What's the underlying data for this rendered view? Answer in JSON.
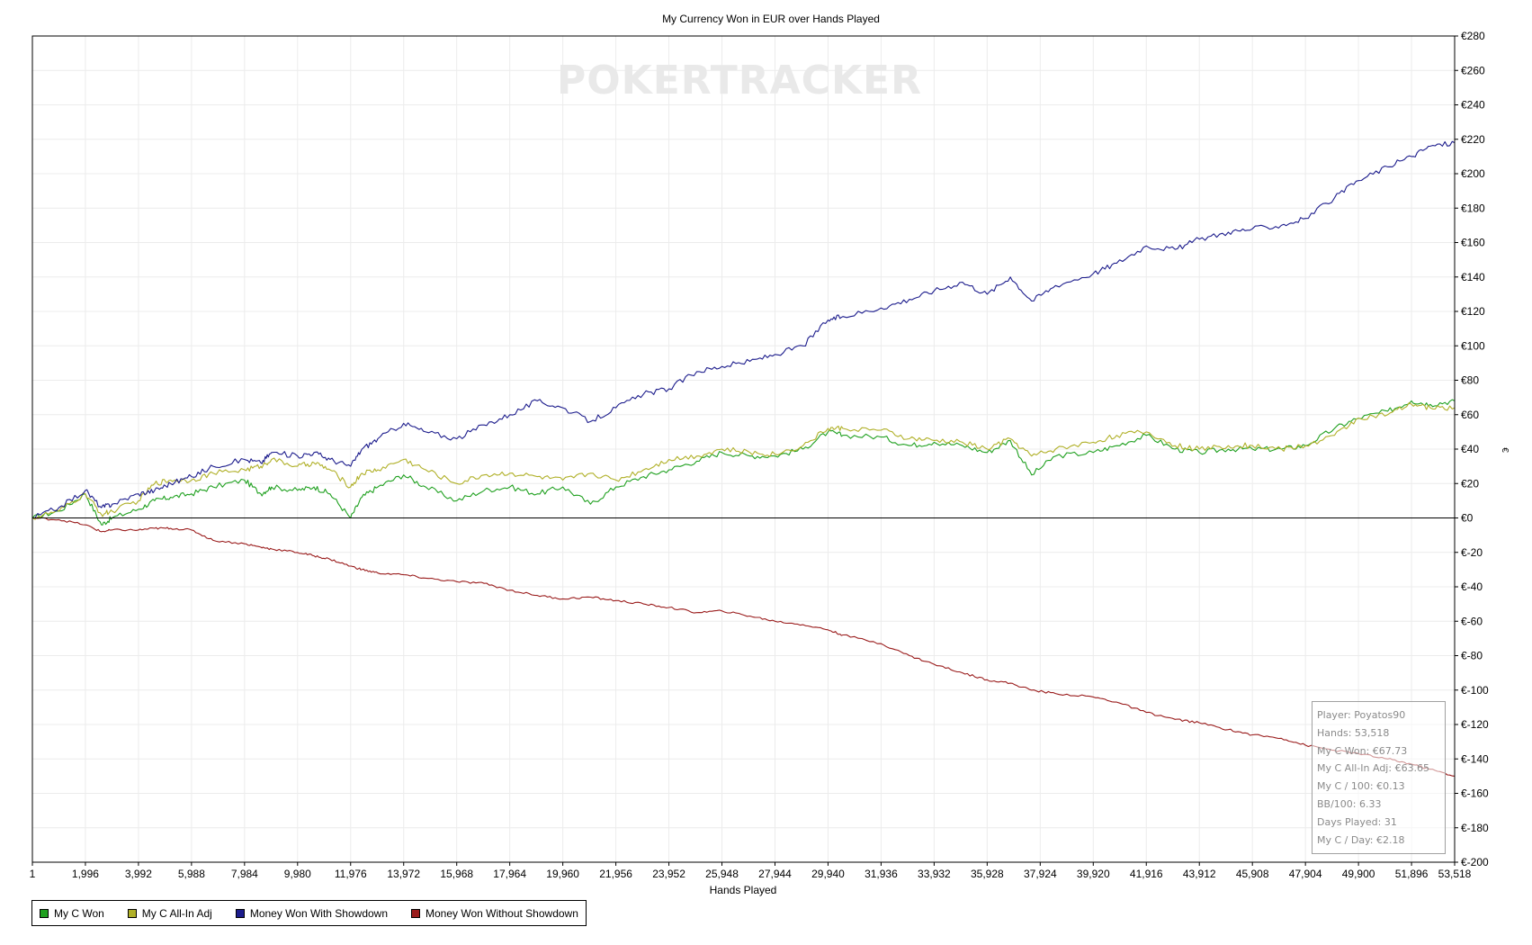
{
  "chart_data": {
    "type": "line",
    "title": "My Currency Won in EUR over Hands Played",
    "xlabel": "Hands Played",
    "ylabel": "€",
    "watermark": "POKERTRACKER",
    "xlim": [
      1,
      53518
    ],
    "ylim": [
      -200,
      280
    ],
    "x_ticks": [
      1,
      1996,
      3992,
      5988,
      7984,
      9980,
      11976,
      13972,
      15968,
      17964,
      19960,
      21956,
      23952,
      25948,
      27944,
      29940,
      31936,
      33932,
      35928,
      37924,
      39920,
      41916,
      43912,
      45908,
      47904,
      49900,
      51896,
      53518
    ],
    "x_tick_labels": [
      "1",
      "1,996",
      "3,992",
      "5,988",
      "7,984",
      "9,980",
      "11,976",
      "13,972",
      "15,968",
      "17,964",
      "19,960",
      "21,956",
      "23,952",
      "25,948",
      "27,944",
      "29,940",
      "31,936",
      "33,932",
      "35,928",
      "37,924",
      "39,920",
      "41,916",
      "43,912",
      "45,908",
      "47,904",
      "49,900",
      "51,896",
      "53,518"
    ],
    "y_ticks": [
      280,
      260,
      240,
      220,
      200,
      180,
      160,
      140,
      120,
      100,
      80,
      60,
      40,
      20,
      0,
      -20,
      -40,
      -60,
      -80,
      -100,
      -120,
      -140,
      -160,
      -180,
      -200
    ],
    "y_tick_labels": [
      "€280",
      "€260",
      "€240",
      "€220",
      "€200",
      "€180",
      "€160",
      "€140",
      "€120",
      "€100",
      "€80",
      "€60",
      "€40",
      "€20",
      "€0",
      "€-20",
      "€-40",
      "€-60",
      "€-80",
      "€-100",
      "€-120",
      "€-140",
      "€-160",
      "€-180",
      "€-200"
    ],
    "grid": true,
    "legend_position": "bottom-left",
    "series": [
      {
        "name": "My C Won",
        "color": "#1fa01f",
        "x": [
          1,
          1000,
          1996,
          2600,
          3000,
          3992,
          4600,
          5200,
          5988,
          6800,
          7984,
          8600,
          9000,
          9980,
          10600,
          11200,
          11976,
          12400,
          13000,
          13972,
          14800,
          15968,
          17000,
          17964,
          19000,
          19960,
          21000,
          21956,
          23000,
          23952,
          25000,
          25948,
          27000,
          27944,
          29000,
          29940,
          30500,
          31936,
          33000,
          33932,
          35000,
          35928,
          36800,
          37600,
          38500,
          39920,
          40800,
          41916,
          43000,
          43912,
          45000,
          45908,
          47000,
          47904,
          49000,
          49900,
          51000,
          51896,
          52600,
          53518
        ],
        "y": [
          0,
          4,
          14,
          -4,
          0,
          5,
          10,
          12,
          14,
          18,
          22,
          14,
          18,
          16,
          18,
          14,
          0,
          12,
          18,
          25,
          18,
          10,
          16,
          18,
          14,
          18,
          8,
          18,
          24,
          28,
          33,
          38,
          36,
          36,
          40,
          50,
          48,
          47,
          42,
          44,
          42,
          38,
          45,
          25,
          36,
          38,
          42,
          48,
          40,
          38,
          40,
          40,
          40,
          42,
          52,
          58,
          62,
          68,
          66,
          68
        ]
      },
      {
        "name": "My C All-In Adj",
        "color": "#b0b028",
        "x": [
          1,
          1000,
          1996,
          2600,
          3000,
          3992,
          4600,
          5200,
          5988,
          6800,
          7984,
          8600,
          9000,
          9980,
          10600,
          11200,
          11976,
          12400,
          13000,
          13972,
          14800,
          15968,
          17000,
          17964,
          19000,
          19960,
          21000,
          21956,
          23000,
          23952,
          25000,
          25948,
          27000,
          27944,
          29000,
          29940,
          30500,
          31936,
          33000,
          33932,
          35000,
          35928,
          36800,
          37600,
          38500,
          39920,
          40800,
          41916,
          43000,
          43912,
          45000,
          45908,
          47000,
          47904,
          49000,
          49900,
          51000,
          51896,
          52600,
          53518
        ],
        "y": [
          0,
          4,
          14,
          2,
          4,
          10,
          20,
          22,
          22,
          26,
          28,
          30,
          34,
          30,
          32,
          28,
          18,
          26,
          28,
          34,
          28,
          20,
          25,
          26,
          24,
          22,
          26,
          22,
          28,
          34,
          36,
          40,
          38,
          37,
          42,
          52,
          52,
          51,
          46,
          45,
          44,
          40,
          46,
          36,
          40,
          44,
          48,
          50,
          42,
          40,
          42,
          42,
          40,
          42,
          48,
          58,
          60,
          66,
          64,
          64
        ]
      },
      {
        "name": "Money Won With Showdown",
        "color": "#1c1c8c",
        "x": [
          1,
          1000,
          1996,
          2600,
          3000,
          3992,
          4600,
          5200,
          5988,
          6800,
          7984,
          8600,
          9000,
          9980,
          10600,
          11200,
          11976,
          12400,
          13000,
          13972,
          14800,
          15968,
          17000,
          17964,
          19000,
          19960,
          21000,
          21956,
          23000,
          23952,
          25000,
          25948,
          27000,
          27944,
          29000,
          29940,
          30500,
          31936,
          33000,
          33932,
          35000,
          35928,
          36800,
          37600,
          38500,
          39920,
          40800,
          41916,
          43000,
          43912,
          45000,
          45908,
          47000,
          47904,
          49000,
          49900,
          51000,
          51896,
          52600,
          53518
        ],
        "y": [
          0,
          6,
          16,
          6,
          8,
          14,
          16,
          20,
          24,
          30,
          34,
          32,
          38,
          36,
          38,
          34,
          30,
          40,
          46,
          55,
          50,
          46,
          54,
          60,
          68,
          64,
          56,
          64,
          72,
          75,
          85,
          88,
          91,
          95,
          100,
          115,
          117,
          122,
          127,
          132,
          137,
          130,
          140,
          126,
          135,
          142,
          148,
          158,
          156,
          162,
          166,
          168,
          170,
          174,
          186,
          196,
          204,
          210,
          216,
          218
        ]
      },
      {
        "name": "Money Won Without Showdown",
        "color": "#9a1c1c",
        "x": [
          1,
          1000,
          1996,
          2600,
          3000,
          3992,
          4600,
          5200,
          5988,
          6800,
          7984,
          8600,
          9000,
          9980,
          10600,
          11200,
          11976,
          12400,
          13000,
          13972,
          14800,
          15968,
          17000,
          17964,
          19000,
          19960,
          21000,
          21956,
          23000,
          23952,
          25000,
          25948,
          27000,
          27944,
          29000,
          29940,
          30500,
          31936,
          33000,
          33932,
          35000,
          35928,
          36800,
          37600,
          38500,
          39920,
          40800,
          41916,
          43000,
          43912,
          45000,
          45908,
          47000,
          47904,
          49000,
          49900,
          51000,
          51896,
          52600,
          53518
        ],
        "y": [
          0,
          -1,
          -4,
          -8,
          -7,
          -7,
          -6,
          -6,
          -7,
          -13,
          -15,
          -17,
          -18,
          -20,
          -22,
          -24,
          -28,
          -30,
          -32,
          -33,
          -35,
          -37,
          -38,
          -42,
          -45,
          -47,
          -46,
          -48,
          -50,
          -52,
          -55,
          -54,
          -57,
          -60,
          -62,
          -65,
          -68,
          -73,
          -80,
          -85,
          -90,
          -94,
          -96,
          -100,
          -102,
          -104,
          -107,
          -113,
          -117,
          -119,
          -123,
          -126,
          -128,
          -132,
          -135,
          -137,
          -140,
          -143,
          -146,
          -150
        ]
      }
    ]
  },
  "info_box": {
    "lines": [
      "Player: Poyatos90",
      "Hands: 53,518",
      "My C Won: €67.73",
      "My C All-In Adj: €63.65",
      "My C / 100: €0.13",
      "BB/100: 6.33",
      "Days Played: 31",
      "My C / Day: €2.18"
    ]
  }
}
